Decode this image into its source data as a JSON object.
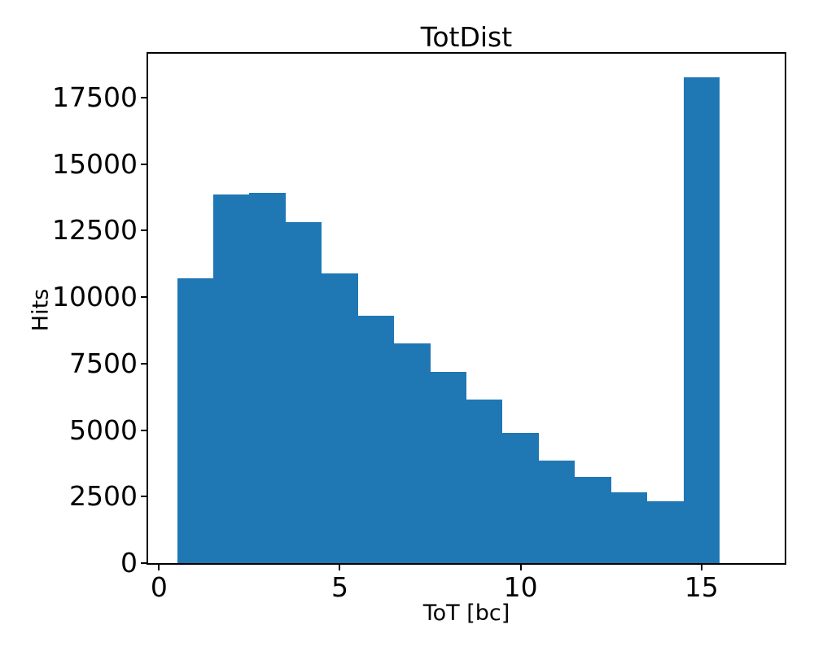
{
  "figure": {
    "background": "#ffffff"
  },
  "chart_data": {
    "type": "bar",
    "title": "TotDist",
    "xlabel": "ToT [bc]",
    "ylabel": "Hits",
    "bar_color": "#1f77b4",
    "axis_color": "#000000",
    "text_color": "#000000",
    "grid": false,
    "bins": {
      "start": 0.5,
      "width": 1.0
    },
    "bin_centers": [
      1,
      2,
      3,
      4,
      5,
      6,
      7,
      8,
      9,
      10,
      11,
      12,
      13,
      14,
      15
    ],
    "values": [
      10700,
      13850,
      13920,
      12820,
      10900,
      9310,
      8250,
      7180,
      6140,
      4900,
      3860,
      3240,
      2650,
      2320,
      18260
    ],
    "xticks": [
      0,
      5,
      10,
      15
    ],
    "yticks": [
      0,
      2500,
      5000,
      7500,
      10000,
      12500,
      15000,
      17500
    ],
    "xlim": [
      -0.3,
      17.3
    ],
    "ylim": [
      0,
      19150
    ]
  }
}
